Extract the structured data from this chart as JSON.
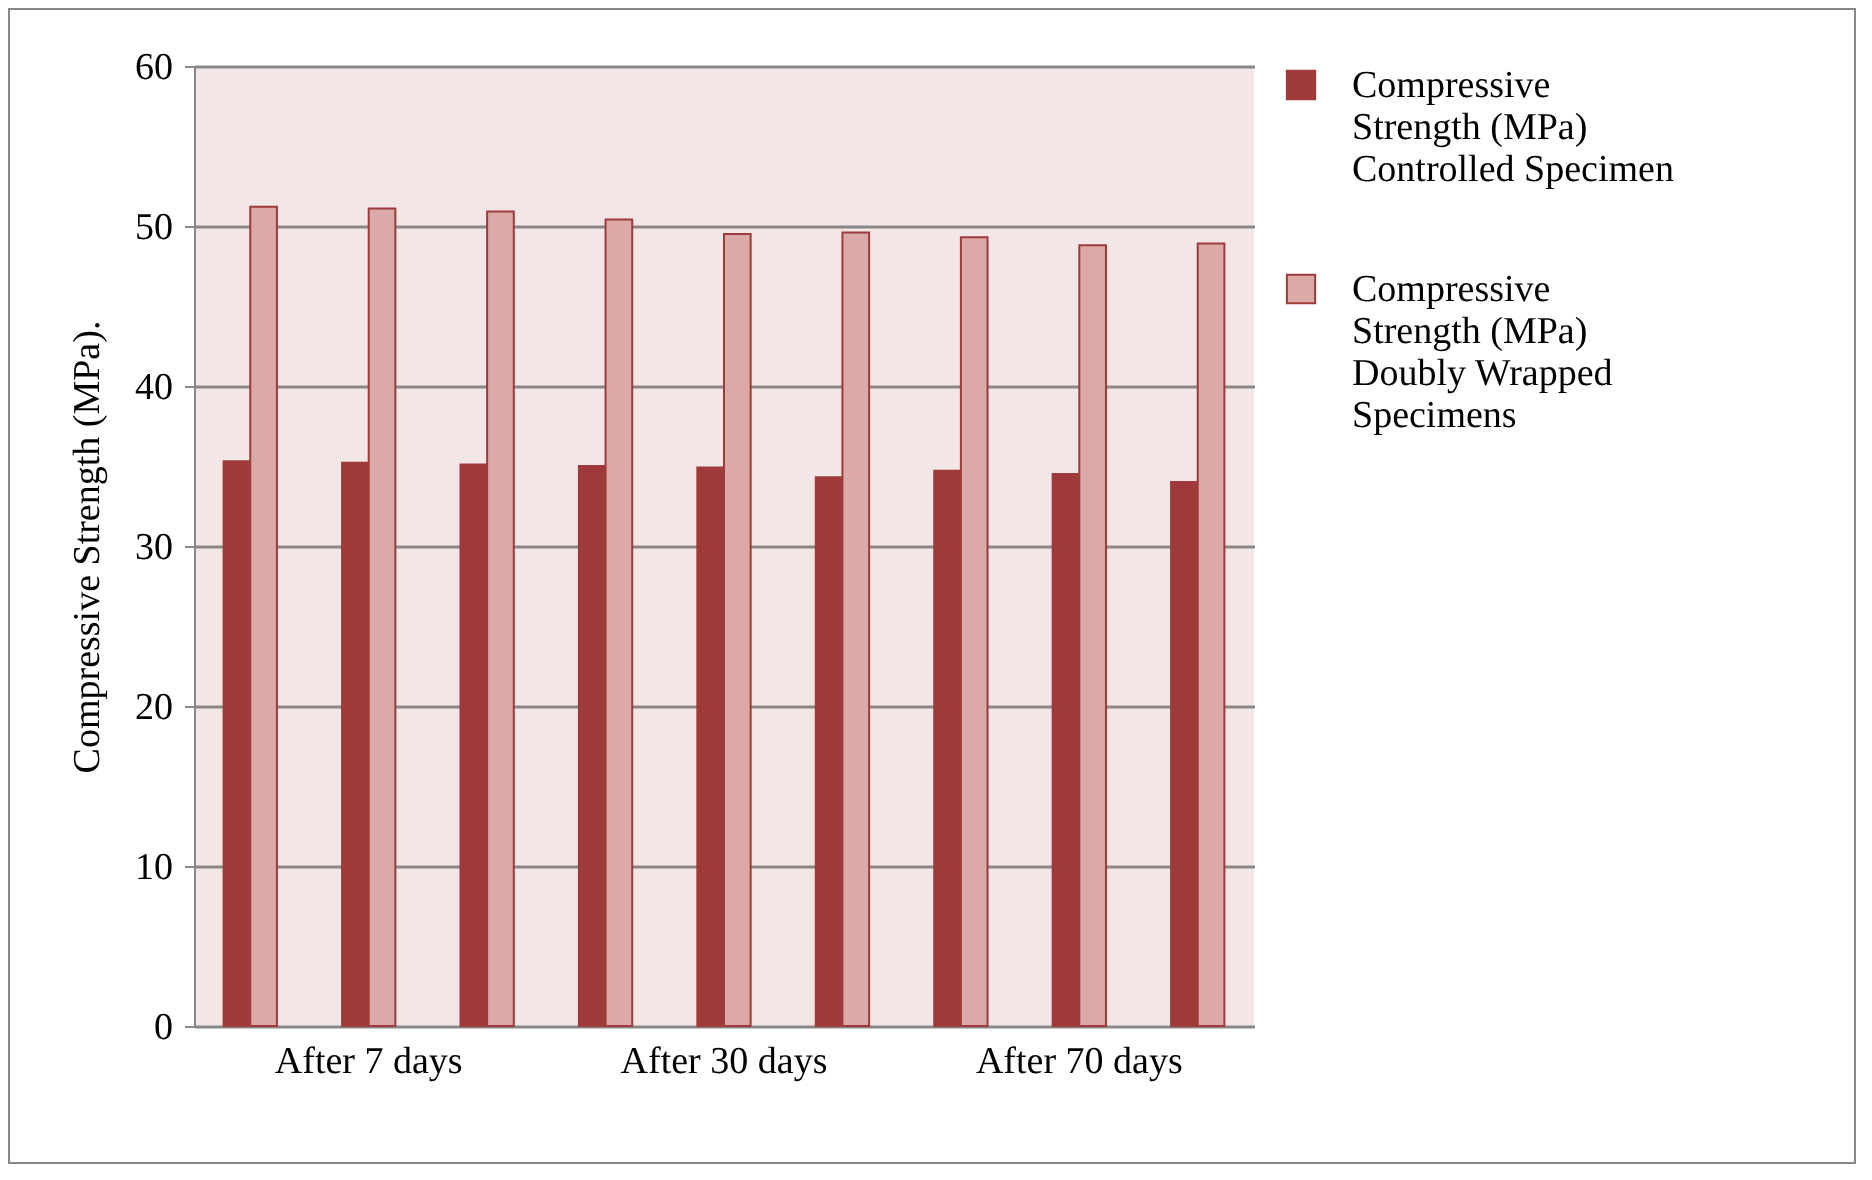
{
  "chart_data": {
    "type": "bar",
    "ylabel": "Compressive Strength (MPa).",
    "categories": [
      null,
      "After 7 days",
      null,
      null,
      "After 30 days",
      null,
      null,
      "After 70 days",
      null
    ],
    "series": [
      {
        "name": "Compressive Strength (MPa) Controlled Specimen",
        "color": "#9e3b3a",
        "values": [
          35.3,
          35.2,
          35.1,
          35.0,
          34.9,
          34.3,
          34.7,
          34.5,
          34.0
        ]
      },
      {
        "name": "Compressive Strength (MPa) Doubly Wrapped Specimens",
        "color": "#dba9a8",
        "values": [
          51.2,
          51.1,
          50.9,
          50.4,
          49.5,
          49.6,
          49.3,
          48.8,
          48.9
        ]
      }
    ],
    "ylim": [
      0,
      60
    ],
    "yticks": [
      0,
      10,
      20,
      30,
      40,
      50,
      60
    ],
    "grid": "y",
    "legend": "right"
  }
}
